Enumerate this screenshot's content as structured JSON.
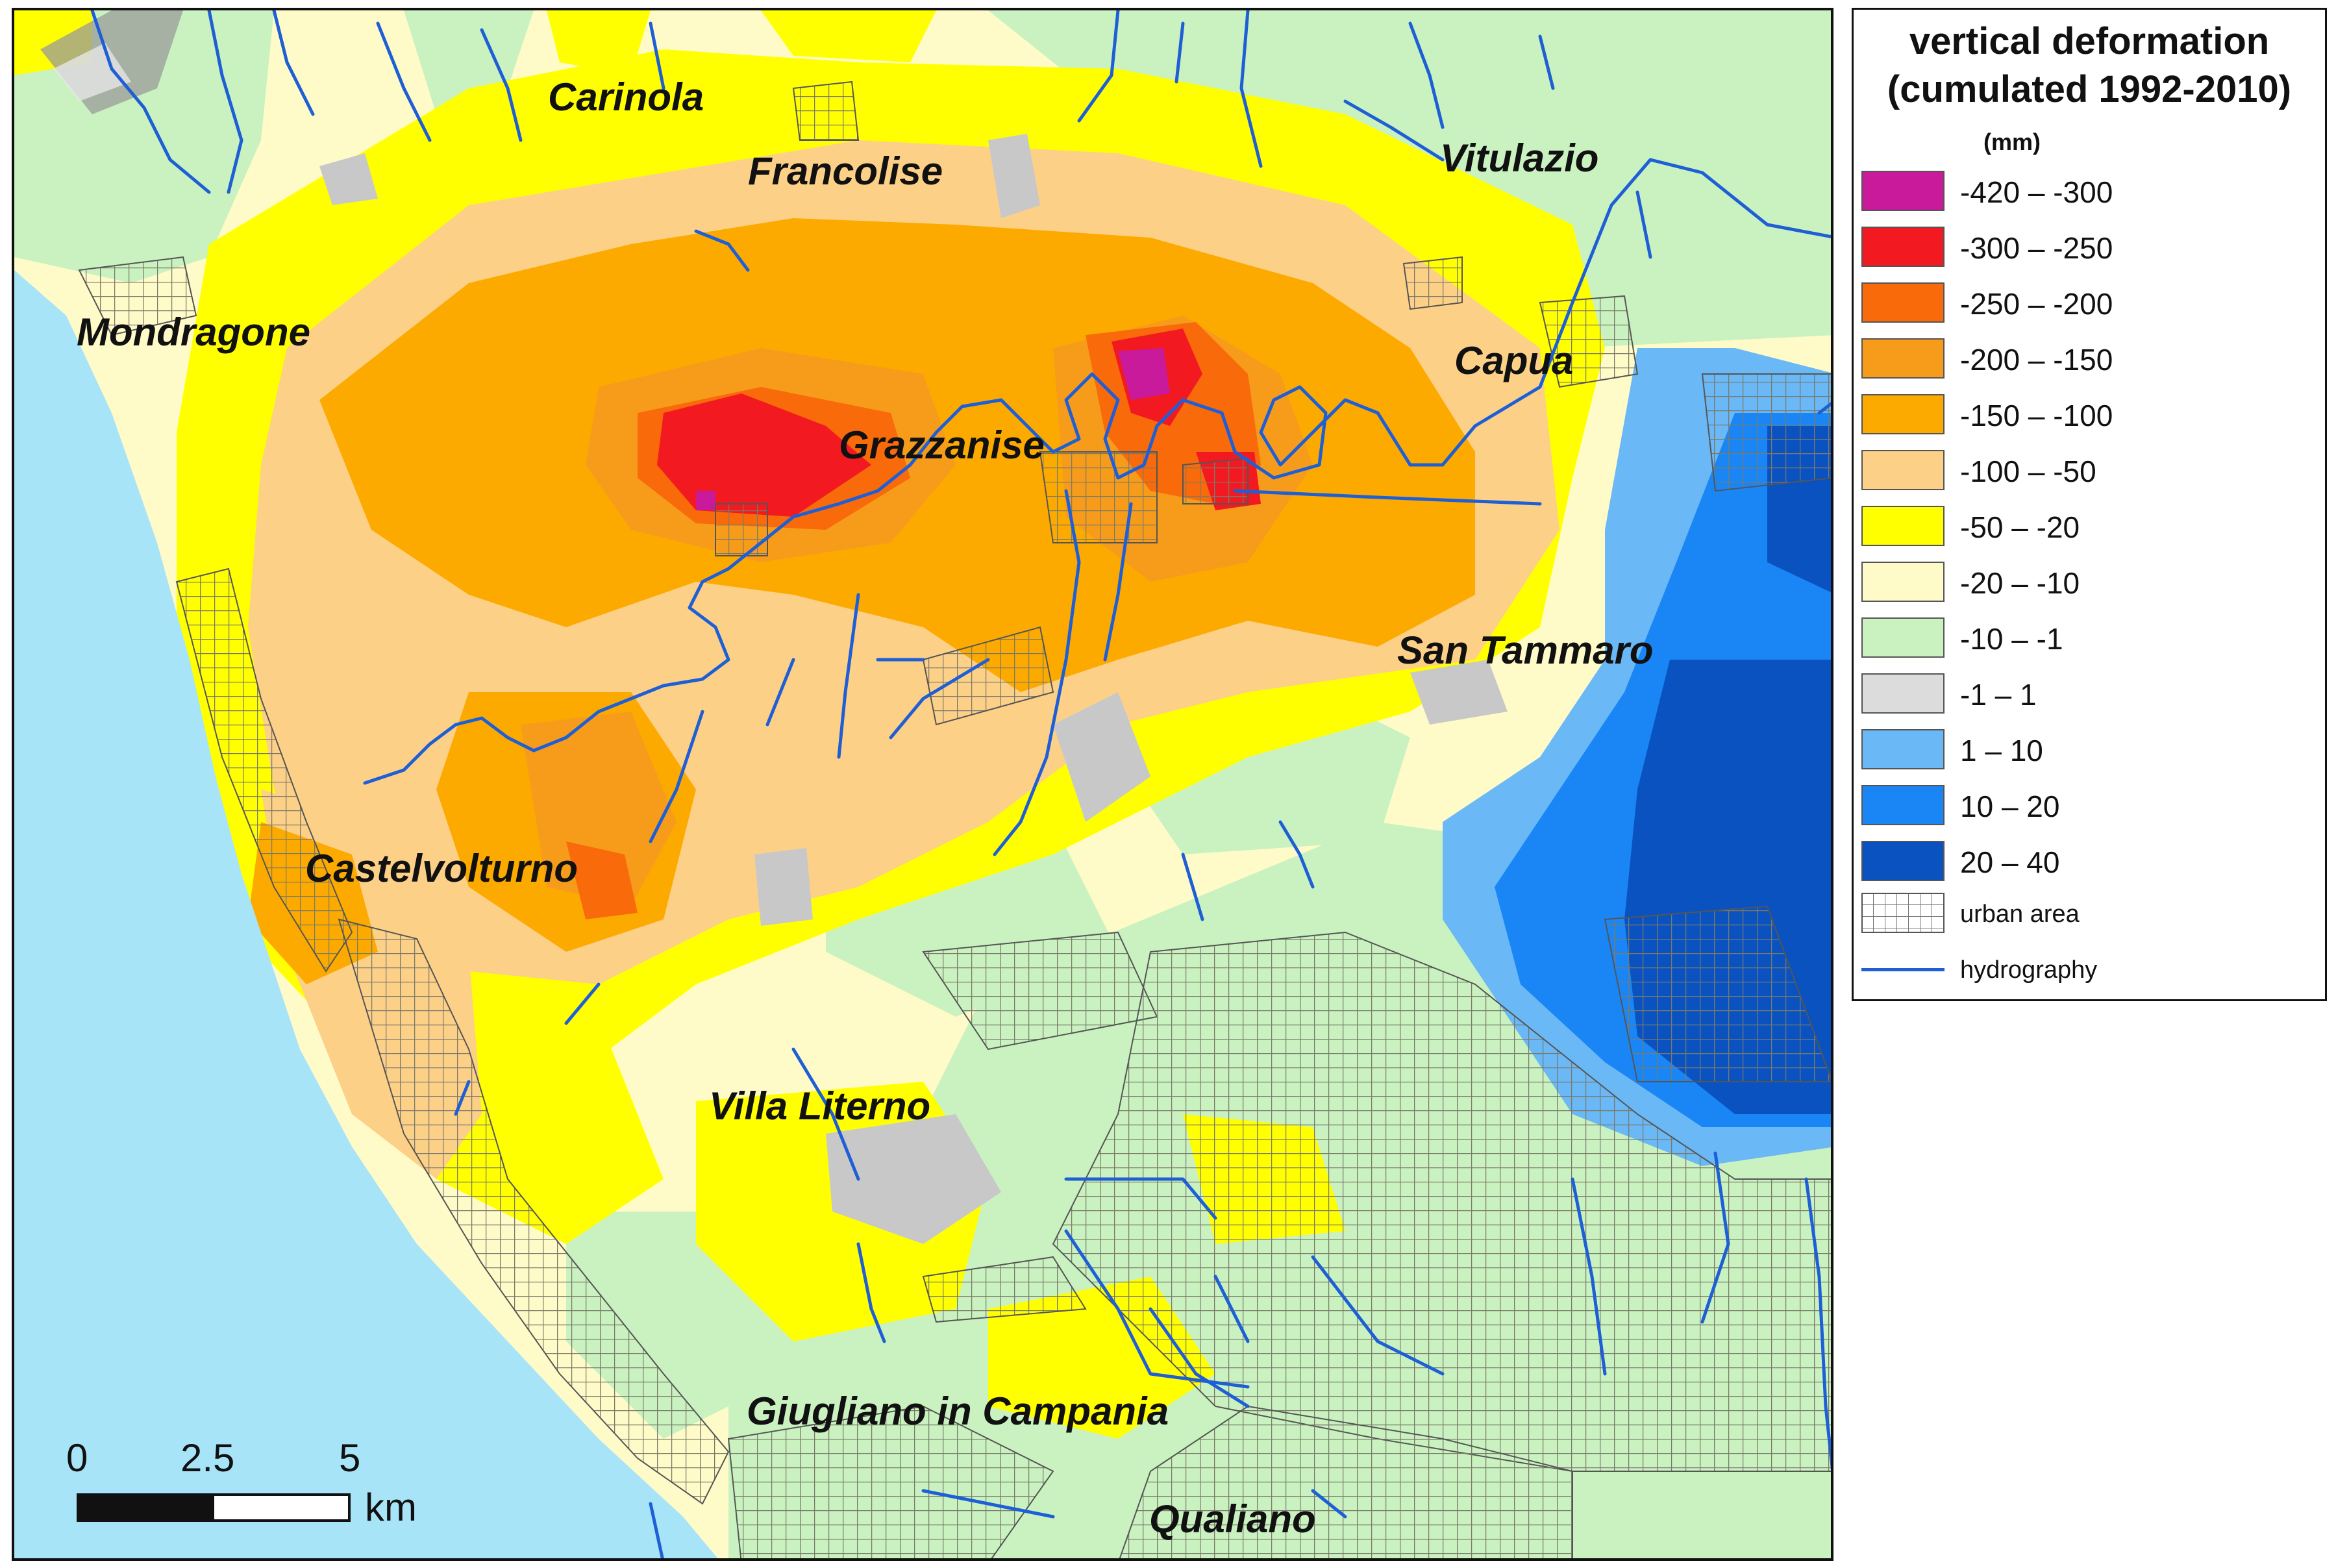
{
  "colors": {
    "sea": "#a8e4f8",
    "land_base": "#fffbc8",
    "light_green": "#c9f2c0",
    "yellow": "#ffff00",
    "light_orange": "#fdd088",
    "orange": "#fdaa00",
    "dark_orange": "#f79c1a",
    "orange_red": "#f86a0a",
    "red": "#f21a20",
    "magenta": "#c81a9a",
    "gray": "#c8c8c8",
    "light_blue": "#6ab8f5",
    "blue": "#1a86f5",
    "dark_blue": "#0a52c0",
    "river": "#1f5fd6",
    "urban_grid": "#7a7a6a"
  },
  "places": {
    "carinola": "Carinola",
    "francolise": "Francolise",
    "vitulazio": "Vitulazio",
    "mondragone": "Mondragone",
    "capua": "Capua",
    "grazzanise": "Grazzanise",
    "san_tammaro": "San Tammaro",
    "castelvolturno": "Castelvolturno",
    "villa_literno": "Villa Literno",
    "giugliano": "Giugliano in Campania",
    "qualiano": "Qualiano"
  },
  "legend": {
    "title_line1": "vertical deformation",
    "title_line2": "(cumulated 1992-2010)",
    "unit": "(mm)",
    "classes": [
      {
        "label": "-420 – -300",
        "color": "#c81a9a"
      },
      {
        "label": "-300 – -250",
        "color": "#f21a20"
      },
      {
        "label": "-250 – -200",
        "color": "#f86a0a"
      },
      {
        "label": "-200 – -150",
        "color": "#f79c1a"
      },
      {
        "label": "-150 – -100",
        "color": "#fdaa00"
      },
      {
        "label": "-100 – -50",
        "color": "#fdd088"
      },
      {
        "label": "-50 – -20",
        "color": "#ffff00"
      },
      {
        "label": "-20 – -10",
        "color": "#fffbc8"
      },
      {
        "label": "-10 – -1",
        "color": "#c9f2c0"
      },
      {
        "label": "-1 – 1",
        "color": "#dcdcdc"
      },
      {
        "label": "1 – 10",
        "color": "#6ab8f5"
      },
      {
        "label": "10 – 20",
        "color": "#1a86f5"
      },
      {
        "label": "20 – 40",
        "color": "#0a52c0"
      }
    ],
    "urban_label": "urban  area",
    "hydro_label": "hydrography"
  },
  "scalebar": {
    "tick_0": "0",
    "tick_1": "2.5",
    "tick_2": "5",
    "unit": "km"
  }
}
